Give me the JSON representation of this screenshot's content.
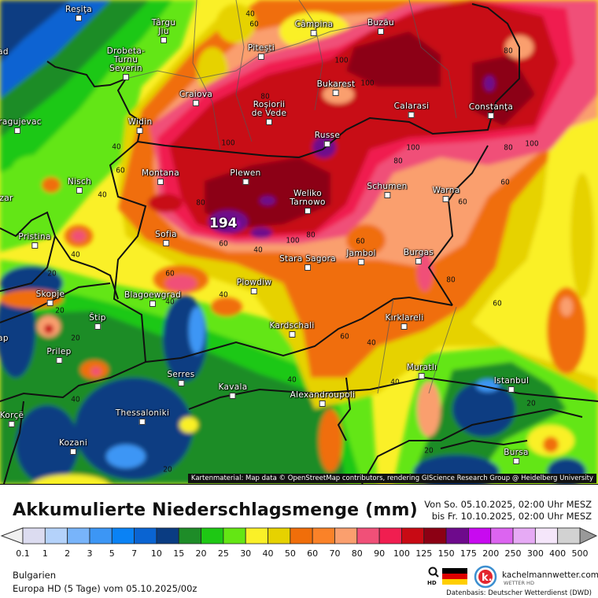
{
  "map": {
    "peak_value": "194",
    "attribution": "Kartenmaterial: Map data © OpenStreetMap contributors, rendering GIScience Research Group @ Heidelberg University",
    "cities": [
      "Reşiţa",
      "Târgu Jiu",
      "Drobeta-Turnu Severin",
      "Craiova",
      "Piteşti",
      "Câmpina",
      "Buzău",
      "Bukarest",
      "Roşiorii de Vede",
      "Calarasi",
      "Constanţa",
      "Russe",
      "Widin",
      "Montana",
      "Plewen",
      "Weliko Tarnowo",
      "Schumen",
      "Warna",
      "Nisch",
      "Sofia",
      "Pristina",
      "Stara Sagora",
      "Jambol",
      "Burgas",
      "Plowdiw",
      "Skopje",
      "Blagoewgrad",
      "Štip",
      "Kardschali",
      "Prilep",
      "Kırklareli",
      "Muratlı",
      "Serres",
      "Kavala",
      "Alexandroupoli",
      "Istanbul",
      "Thessaloniki",
      "Korçë",
      "Kozani",
      "Bursa",
      "Kragujevac",
      "ad",
      "zar",
      "ap"
    ],
    "contour_labels": [
      "40",
      "60",
      "80",
      "100",
      "40",
      "60",
      "40",
      "80",
      "60",
      "40",
      "100",
      "80",
      "60",
      "80",
      "100",
      "80",
      "80",
      "100",
      "60",
      "60",
      "100",
      "100",
      "60",
      "40",
      "20",
      "20",
      "20",
      "40",
      "60",
      "40",
      "40",
      "40",
      "60",
      "40",
      "40",
      "80",
      "60",
      "20",
      "20",
      "20"
    ]
  },
  "header": {
    "title": "Akkumulierte Niederschlagsmenge (mm)",
    "period_from": "Von So. 05.10.2025, 02:00 Uhr MESZ",
    "period_to": "bis Fr. 10.10.2025, 02:00 Uhr MESZ"
  },
  "legend": {
    "unit": "mm",
    "ticks": [
      "0.1",
      "1",
      "2",
      "3",
      "5",
      "7",
      "10",
      "15",
      "20",
      "25",
      "30",
      "40",
      "50",
      "60",
      "70",
      "80",
      "90",
      "100",
      "125",
      "150",
      "175",
      "200",
      "250",
      "300",
      "400",
      "500"
    ],
    "colors": [
      "#dcdcf0",
      "#b4d2fa",
      "#78b4fa",
      "#3c96f5",
      "#0a82f5",
      "#0a64d2",
      "#0a3c82",
      "#1e8c28",
      "#1ec814",
      "#64e614",
      "#faf028",
      "#e6d200",
      "#f06e0a",
      "#fa8228",
      "#fa9f6e",
      "#f05078",
      "#f01e50",
      "#c80a14",
      "#8c0014",
      "#6e0a8c",
      "#c80af0",
      "#dc64f0",
      "#e6aaf5",
      "#f5e6fa",
      "#d2d2d2"
    ],
    "below_color": "#f0f0f0",
    "above_color": "#999999"
  },
  "footer": {
    "region": "Bulgarien",
    "model": "Europa HD (5 Tage) vom  05.10.2025/00z",
    "brand": "kachelmannwetter.com",
    "brand_sub": "WETTER HD",
    "zoom_label": "HD",
    "source": "Datenbasis: Deutscher Wetterdienst (DWD)"
  }
}
